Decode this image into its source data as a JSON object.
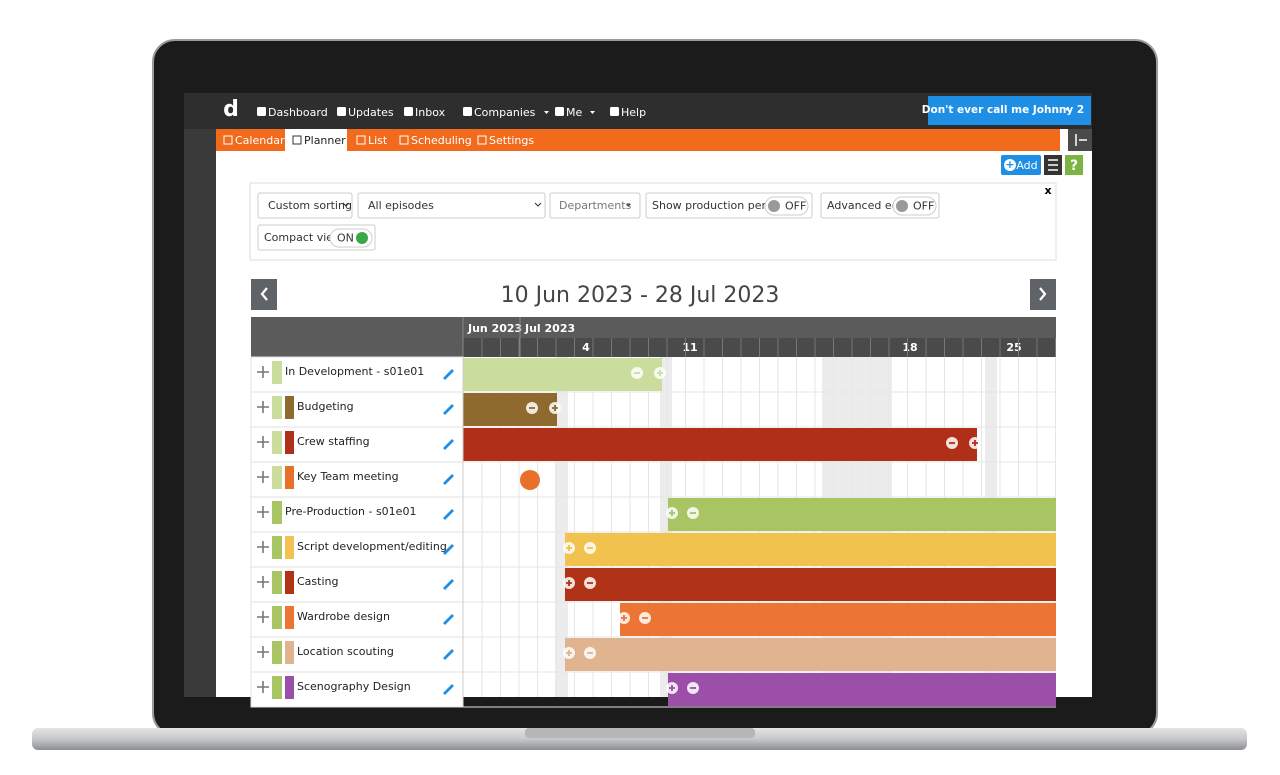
{
  "nav": {
    "logo": "d",
    "items": [
      "Dashboard",
      "Updates",
      "Inbox",
      "Companies",
      "Me",
      "Help"
    ],
    "user": "Don't ever call me Johnny 2"
  },
  "tabs": [
    "Calendar",
    "Planner",
    "List",
    "Scheduling",
    "Settings"
  ],
  "toolbar": {
    "add": "Add",
    "help": "?"
  },
  "filters": {
    "sorting": "Custom sorting",
    "episodes": "All episodes",
    "departments": "Departments",
    "production_periods": {
      "label": "Show production periods",
      "state": "OFF"
    },
    "advanced_edit": {
      "label": "Advanced edit",
      "state": "OFF"
    },
    "compact_view": {
      "label": "Compact view",
      "state": "ON"
    },
    "close": "x"
  },
  "date_range": "10 Jun 2023 - 28 Jul 2023",
  "timeline": {
    "months": [
      "Jun 2023",
      "Jul 2023"
    ],
    "weeks": [
      "4",
      "11",
      "18",
      "25"
    ]
  },
  "rows": [
    "In Development - s01e01",
    "Budgeting",
    "Crew staffing",
    "Key Team meeting",
    "Pre-Production - s01e01",
    "Script development/editing",
    "Casting",
    "Wardrobe design",
    "Location scouting",
    "Scenography Design"
  ]
}
